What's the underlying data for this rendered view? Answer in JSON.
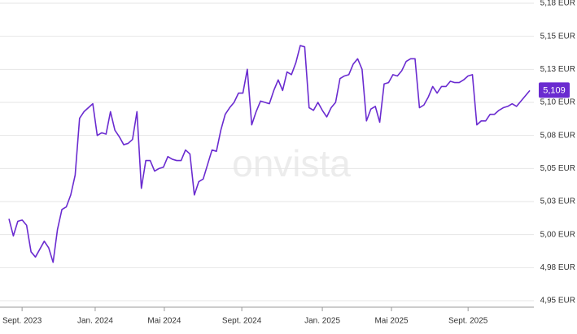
{
  "chart_data": {
    "type": "line",
    "watermark": "onvista",
    "series": [
      {
        "color": "#6a2bd0",
        "values": [
          5.012,
          4.999,
          5.01,
          5.011,
          5.007,
          4.987,
          4.983,
          4.989,
          4.995,
          4.99,
          4.979,
          5.004,
          5.019,
          5.021,
          5.03,
          5.045,
          5.088,
          5.093,
          5.096,
          5.099,
          5.075,
          5.077,
          5.076,
          5.093,
          5.079,
          5.074,
          5.068,
          5.069,
          5.072,
          5.093,
          5.035,
          5.056,
          5.056,
          5.048,
          5.05,
          5.051,
          5.059,
          5.057,
          5.056,
          5.056,
          5.064,
          5.061,
          5.03,
          5.04,
          5.042,
          5.053,
          5.064,
          5.063,
          5.079,
          5.091,
          5.096,
          5.1,
          5.107,
          5.107,
          5.125,
          5.083,
          5.093,
          5.101,
          5.1,
          5.099,
          5.109,
          5.117,
          5.109,
          5.123,
          5.121,
          5.13,
          5.143,
          5.142,
          5.096,
          5.094,
          5.1,
          5.094,
          5.089,
          5.096,
          5.1,
          5.118,
          5.12,
          5.121,
          5.129,
          5.133,
          5.125,
          5.086,
          5.095,
          5.097,
          5.085,
          5.114,
          5.115,
          5.121,
          5.12,
          5.124,
          5.131,
          5.133,
          5.133,
          5.096,
          5.098,
          5.104,
          5.112,
          5.107,
          5.112,
          5.112,
          5.116,
          5.115,
          5.115,
          5.117,
          5.12,
          5.121,
          5.083,
          5.086,
          5.086,
          5.091,
          5.091,
          5.094,
          5.096,
          5.097,
          5.099,
          5.097,
          5.101,
          5.105,
          5.109
        ]
      }
    ],
    "last_label": "5,109",
    "xlim": [
      0,
      119
    ],
    "xticks": [
      {
        "value": 3,
        "label": "Sept. 2023"
      },
      {
        "value": 19.7,
        "label": "Jan. 2024"
      },
      {
        "value": 35.5,
        "label": "Mai 2024"
      },
      {
        "value": 53.2,
        "label": "Sept. 2024"
      },
      {
        "value": 71.6,
        "label": "Jan. 2025"
      },
      {
        "value": 87.4,
        "label": "Mai 2025"
      },
      {
        "value": 104.9,
        "label": "Sept. 2025"
      }
    ],
    "ylim": [
      4.95,
      5.175
    ],
    "yticks": [
      {
        "value": 4.95,
        "label": "4,95 EUR"
      },
      {
        "value": 4.975,
        "label": "4,98 EUR"
      },
      {
        "value": 5.0,
        "label": "5,00 EUR"
      },
      {
        "value": 5.025,
        "label": "5,03 EUR"
      },
      {
        "value": 5.05,
        "label": "5,05 EUR"
      },
      {
        "value": 5.075,
        "label": "5,08 EUR"
      },
      {
        "value": 5.1,
        "label": "5,10 EUR"
      },
      {
        "value": 5.125,
        "label": "5,13 EUR"
      },
      {
        "value": 5.15,
        "label": "5,15 EUR"
      },
      {
        "value": 5.175,
        "label": "5,18 EUR"
      }
    ],
    "grid": true
  }
}
